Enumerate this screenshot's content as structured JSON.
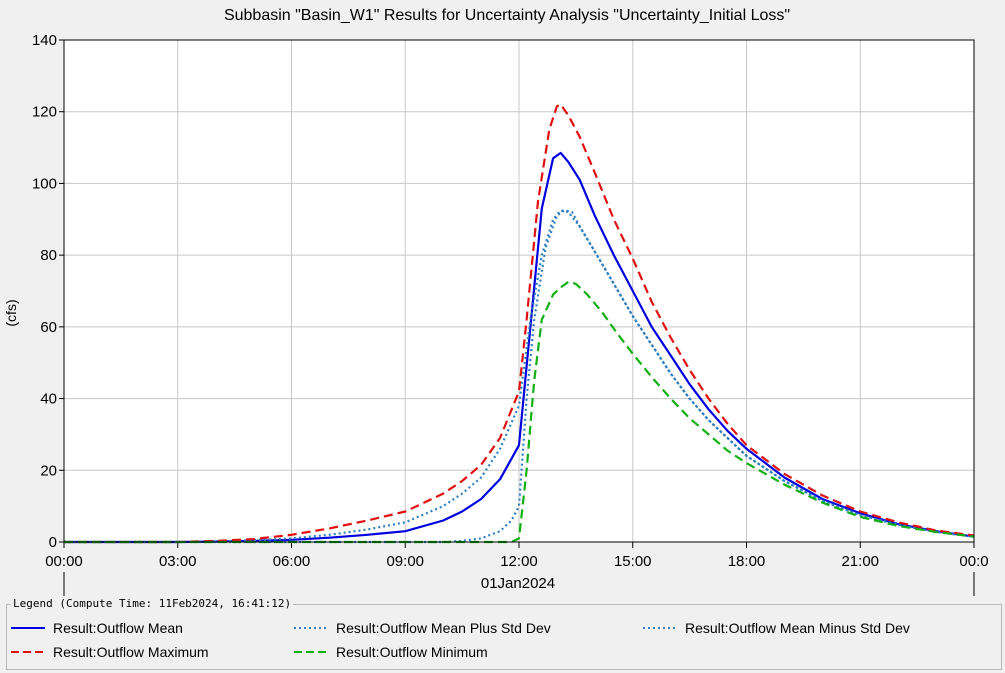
{
  "chart_data": {
    "type": "line",
    "title": "Subbasin \"Basin_W1\" Results for Uncertainty Analysis \"Uncertainty_Initial Loss\"",
    "ylabel": "(cfs)",
    "xlabel": "01Jan2024",
    "ylim": [
      0,
      140
    ],
    "xlim": [
      0,
      24
    ],
    "yticks": [
      "0",
      "20",
      "40",
      "60",
      "80",
      "100",
      "120",
      "140"
    ],
    "xticks": [
      "00:00",
      "03:00",
      "06:00",
      "09:00",
      "12:00",
      "15:00",
      "18:00",
      "21:00",
      "00:0"
    ],
    "grid": true,
    "series": [
      {
        "name": "Result:Outflow Mean",
        "color": "#0000e0",
        "style": "solid",
        "x": [
          0,
          3,
          4,
          5,
          6,
          7,
          8,
          9,
          10,
          10.5,
          11,
          11.5,
          12,
          12.3,
          12.6,
          12.9,
          13.1,
          13.3,
          13.6,
          14,
          14.5,
          15,
          15.5,
          16,
          16.5,
          17,
          17.5,
          18,
          19,
          20,
          21,
          22,
          23,
          24
        ],
        "y": [
          0,
          0,
          0.1,
          0.3,
          0.6,
          1.2,
          2,
          3,
          6,
          8.5,
          12,
          17.5,
          27,
          60,
          93,
          107,
          108.5,
          106,
          101,
          91,
          80,
          70,
          60,
          52,
          44,
          37,
          31,
          26,
          18,
          12,
          8,
          5,
          3,
          1.5
        ]
      },
      {
        "name": "Result:Outflow Mean Plus Std Dev",
        "color": "#2f7fbf",
        "style": "dotted",
        "x": [
          0,
          3,
          4,
          5,
          6,
          7,
          8,
          9,
          10,
          10.5,
          11,
          11.5,
          12,
          12.3,
          12.6,
          12.9,
          13.1,
          13.3,
          13.6,
          14,
          14.5,
          15,
          15.5,
          16,
          16.5,
          17,
          17.5,
          18,
          19,
          20,
          21,
          22,
          23,
          24
        ],
        "y": [
          0,
          0,
          0.2,
          0.5,
          1,
          2,
          3.5,
          5.5,
          10,
          13.5,
          18,
          26,
          38,
          62,
          80,
          90,
          92.5,
          92,
          88,
          81,
          72,
          63,
          55,
          47,
          40,
          34,
          29,
          24,
          17,
          11.5,
          7.5,
          4.8,
          2.8,
          1.5
        ]
      },
      {
        "name": "Result:Outflow Mean Minus Std Dev",
        "color": "#2f7fbf",
        "style": "dotted",
        "x": [
          0,
          3,
          6,
          9,
          10,
          10.5,
          11,
          11.5,
          11.8,
          12,
          12.2,
          12.4,
          12.7,
          13,
          13.2,
          13.4,
          13.6,
          14,
          14.5,
          15,
          15.5,
          16,
          16.5,
          17,
          17.5,
          18,
          19,
          20,
          21,
          22,
          23,
          24
        ],
        "y": [
          0,
          0,
          0,
          0,
          0,
          0.3,
          1,
          3,
          6,
          10,
          40,
          62,
          82,
          91,
          92.5,
          92,
          88,
          81,
          72,
          63,
          55,
          47,
          40,
          34,
          29,
          24,
          17,
          11.5,
          7.5,
          4.8,
          2.8,
          1.5
        ]
      },
      {
        "name": "Result:Outflow Maximum",
        "color": "#e01010",
        "style": "dashed",
        "x": [
          0,
          3,
          4,
          5,
          6,
          7,
          8,
          9,
          10,
          10.5,
          11,
          11.5,
          12,
          12.2,
          12.5,
          12.8,
          13,
          13.1,
          13.3,
          13.6,
          14,
          14.5,
          15,
          15.5,
          16,
          16.5,
          17,
          17.5,
          18,
          19,
          20,
          21,
          22,
          23,
          24
        ],
        "y": [
          0,
          0,
          0.3,
          0.8,
          2,
          3.8,
          6,
          8.5,
          13.5,
          17,
          21.5,
          29,
          42,
          62,
          95,
          115,
          121.5,
          122,
          119,
          113,
          103,
          90,
          79,
          67,
          57,
          48,
          40,
          33,
          27,
          19,
          13,
          8.5,
          5.5,
          3.2,
          1.8
        ]
      },
      {
        "name": "Result:Outflow Minimum",
        "color": "#10b010",
        "style": "dashed",
        "x": [
          0,
          3,
          6,
          9,
          11,
          11.8,
          12,
          12.2,
          12.4,
          12.6,
          12.9,
          13.1,
          13.3,
          13.5,
          13.8,
          14.2,
          14.6,
          15,
          15.5,
          16,
          16.5,
          17,
          17.5,
          18,
          19,
          20,
          21,
          22,
          23,
          24
        ],
        "y": [
          0,
          0,
          0,
          0,
          0,
          0,
          1,
          20,
          45,
          62,
          69,
          71,
          72.5,
          72,
          69,
          64,
          58,
          52.5,
          46,
          40,
          34.5,
          30,
          25.5,
          22,
          16,
          11,
          7,
          4.5,
          2.8,
          1.5
        ]
      }
    ]
  },
  "legend": {
    "title": "Legend (Compute Time: 11Feb2024, 16:41:12)",
    "items": [
      {
        "label": "Result:Outflow Mean"
      },
      {
        "label": "Result:Outflow Mean Plus Std Dev"
      },
      {
        "label": "Result:Outflow Mean Minus Std Dev"
      },
      {
        "label": "Result:Outflow Maximum"
      },
      {
        "label": "Result:Outflow Minimum"
      }
    ]
  }
}
